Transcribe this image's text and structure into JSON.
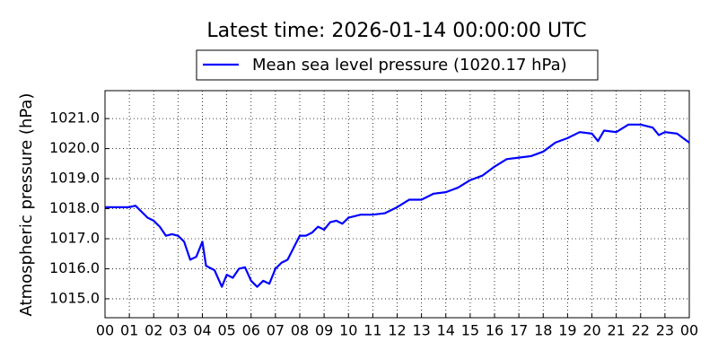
{
  "chart_data": {
    "type": "line",
    "title": "Latest time: 2026-01-14 00:00:00 UTC",
    "y_label": "Atmospheric pressure (hPa)",
    "x": [
      0,
      0.5,
      1,
      1.25,
      1.5,
      1.75,
      2,
      2.25,
      2.5,
      2.75,
      3,
      3.25,
      3.5,
      3.75,
      4,
      4.15,
      4.5,
      4.8,
      5,
      5.25,
      5.5,
      5.75,
      6,
      6.25,
      6.5,
      6.75,
      7,
      7.25,
      7.5,
      7.75,
      8,
      8.25,
      8.5,
      8.75,
      9,
      9.25,
      9.5,
      9.75,
      10,
      10.5,
      11,
      11.5,
      12,
      12.5,
      13,
      13.5,
      14,
      14.5,
      15,
      15.5,
      16,
      16.5,
      17,
      17.5,
      18,
      18.5,
      19,
      19.5,
      20,
      20.25,
      20.5,
      21,
      21.5,
      22,
      22.5,
      22.75,
      23,
      23.5,
      24
    ],
    "series": [
      {
        "name": "Mean sea level pressure (1020.17 hPa)",
        "color": "#0000ff",
        "values": [
          1018.05,
          1018.05,
          1018.05,
          1018.1,
          1017.9,
          1017.7,
          1017.6,
          1017.4,
          1017.1,
          1017.15,
          1017.1,
          1016.9,
          1016.3,
          1016.4,
          1016.9,
          1016.1,
          1015.95,
          1015.4,
          1015.8,
          1015.7,
          1016.0,
          1016.05,
          1015.6,
          1015.4,
          1015.6,
          1015.5,
          1016.0,
          1016.2,
          1016.3,
          1016.7,
          1017.1,
          1017.1,
          1017.2,
          1017.4,
          1017.3,
          1017.55,
          1017.6,
          1017.5,
          1017.7,
          1017.8,
          1017.8,
          1017.85,
          1018.05,
          1018.3,
          1018.3,
          1018.5,
          1018.55,
          1018.7,
          1018.95,
          1019.1,
          1019.4,
          1019.65,
          1019.7,
          1019.75,
          1019.9,
          1020.2,
          1020.35,
          1020.55,
          1020.5,
          1020.25,
          1020.6,
          1020.55,
          1020.8,
          1020.8,
          1020.7,
          1020.45,
          1020.55,
          1020.5,
          1020.2
        ]
      }
    ],
    "xlim": [
      0,
      24
    ],
    "xticks": [
      {
        "value": 0,
        "label": "00"
      },
      {
        "value": 1,
        "label": "01"
      },
      {
        "value": 2,
        "label": "02"
      },
      {
        "value": 3,
        "label": "03"
      },
      {
        "value": 4,
        "label": "04"
      },
      {
        "value": 5,
        "label": "05"
      },
      {
        "value": 6,
        "label": "06"
      },
      {
        "value": 7,
        "label": "07"
      },
      {
        "value": 8,
        "label": "08"
      },
      {
        "value": 9,
        "label": "09"
      },
      {
        "value": 10,
        "label": "10"
      },
      {
        "value": 11,
        "label": "11"
      },
      {
        "value": 12,
        "label": "12"
      },
      {
        "value": 13,
        "label": "13"
      },
      {
        "value": 14,
        "label": "14"
      },
      {
        "value": 15,
        "label": "15"
      },
      {
        "value": 16,
        "label": "16"
      },
      {
        "value": 17,
        "label": "17"
      },
      {
        "value": 18,
        "label": "18"
      },
      {
        "value": 19,
        "label": "19"
      },
      {
        "value": 20,
        "label": "20"
      },
      {
        "value": 21,
        "label": "21"
      },
      {
        "value": 22,
        "label": "22"
      },
      {
        "value": 23,
        "label": "23"
      },
      {
        "value": 24,
        "label": "00"
      }
    ],
    "ylim": [
      1014.37,
      1021.93
    ],
    "yticks": [
      {
        "value": 1015,
        "label": "1015.0"
      },
      {
        "value": 1016,
        "label": "1016.0"
      },
      {
        "value": 1017,
        "label": "1017.0"
      },
      {
        "value": 1018,
        "label": "1018.0"
      },
      {
        "value": 1019,
        "label": "1019.0"
      },
      {
        "value": 1020,
        "label": "1020.0"
      },
      {
        "value": 1021,
        "label": "1021.0"
      }
    ],
    "grid": true,
    "legend": "top"
  }
}
